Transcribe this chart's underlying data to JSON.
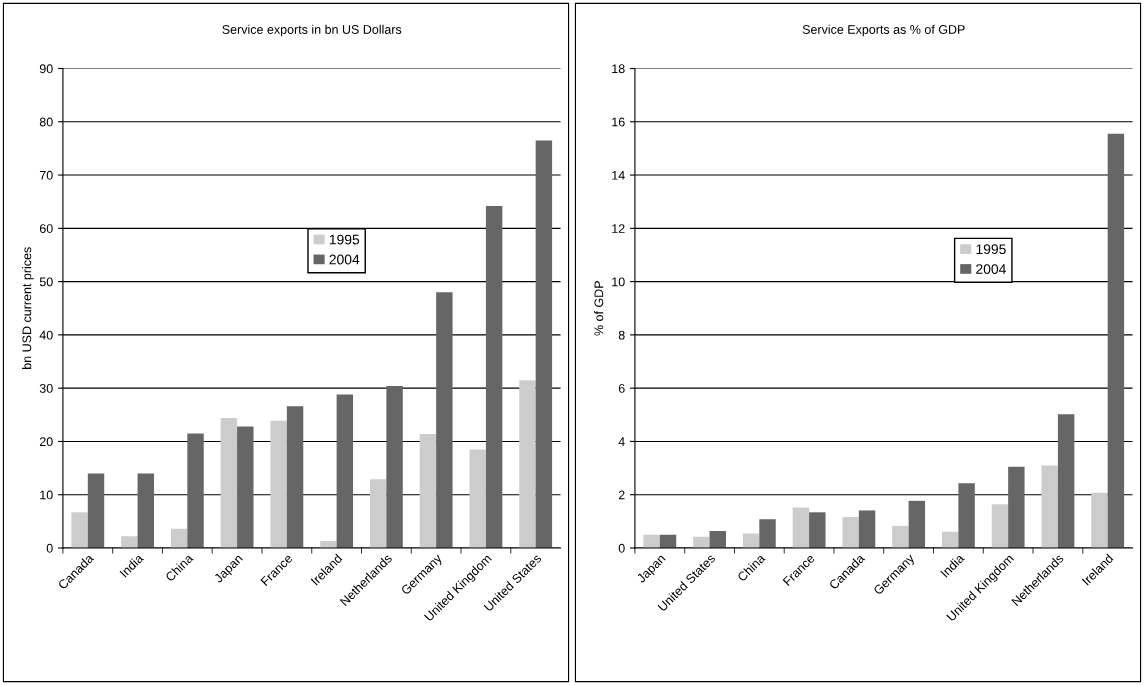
{
  "chart_data": [
    {
      "type": "bar",
      "title": "Service exports in bn US Dollars",
      "ylabel": "bn USD current prices",
      "categories": [
        "Canada",
        "India",
        "China",
        "Japan",
        "France",
        "Ireland",
        "Netherlands",
        "Germany",
        "United Kingdom",
        "United States"
      ],
      "series": [
        {
          "name": "1995",
          "color": "#cccccc",
          "values": [
            6.7,
            2.2,
            3.6,
            24.4,
            23.9,
            1.3,
            12.9,
            21.4,
            18.5,
            31.5
          ]
        },
        {
          "name": "2004",
          "color": "#666666",
          "values": [
            14,
            14,
            21.5,
            22.8,
            26.6,
            28.8,
            30.4,
            48,
            64.2,
            76.5
          ]
        }
      ],
      "ylim": [
        0,
        90
      ],
      "yticks": [
        0,
        10,
        20,
        30,
        40,
        50,
        60,
        70,
        80,
        90
      ],
      "grid": "y",
      "legend": "center"
    },
    {
      "type": "bar",
      "title": "Service Exports as % of GDP",
      "ylabel": "% of GDP",
      "categories": [
        "Japan",
        "United States",
        "China",
        "France",
        "Canada",
        "Germany",
        "India",
        "United Kingdom",
        "Netherlands",
        "Ireland"
      ],
      "series": [
        {
          "name": "1995",
          "color": "#cccccc",
          "values": [
            0.5,
            0.42,
            0.54,
            1.52,
            1.16,
            0.83,
            0.61,
            1.64,
            3.1,
            2.07
          ]
        },
        {
          "name": "2004",
          "color": "#666666",
          "values": [
            0.5,
            0.64,
            1.08,
            1.34,
            1.41,
            1.77,
            2.43,
            3.05,
            5.02,
            15.55
          ]
        }
      ],
      "ylim": [
        0,
        18
      ],
      "yticks": [
        0,
        2,
        4,
        6,
        8,
        10,
        12,
        14,
        16,
        18
      ],
      "grid": "y",
      "legend": "center right"
    }
  ]
}
